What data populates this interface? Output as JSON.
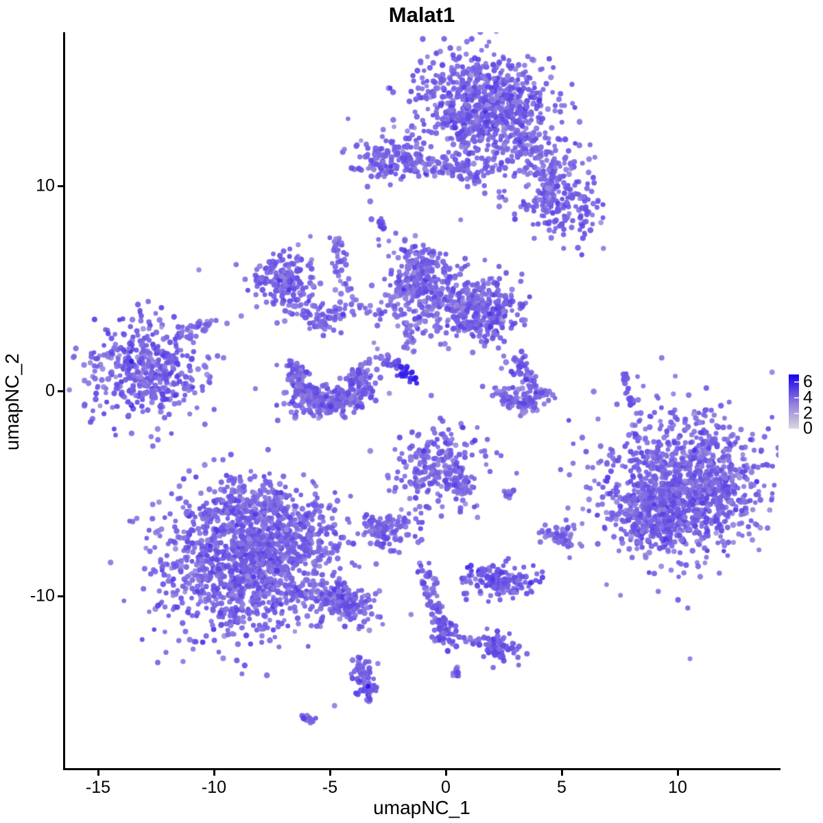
{
  "chart_data": {
    "type": "scatter",
    "title": "Malat1",
    "xlabel": "umapNC_1",
    "ylabel": "umapNC_2",
    "xlim": [
      -16.4,
      14.4
    ],
    "ylim": [
      -17.9,
      17.5
    ],
    "grid": false,
    "background": "#ffffff",
    "axis_color": "#000000",
    "x_ticks": [
      {
        "value": -15,
        "label": "-15"
      },
      {
        "value": -10,
        "label": "-10"
      },
      {
        "value": -5,
        "label": "-5"
      },
      {
        "value": 0,
        "label": "0"
      },
      {
        "value": 5,
        "label": "5"
      },
      {
        "value": 10,
        "label": "10"
      }
    ],
    "y_ticks": [
      {
        "value": 10,
        "label": "10"
      },
      {
        "value": 0,
        "label": "0"
      },
      {
        "value": -10,
        "label": "-10"
      }
    ],
    "colorbar": {
      "position": "right",
      "min": 0,
      "max": 6.8,
      "labels": [
        "6",
        "4",
        "2",
        "0"
      ],
      "label_values": [
        6,
        4,
        2,
        0
      ],
      "low_color": "#D3D3D3",
      "mid_color": "#9680DE",
      "high_color": "#1500EE"
    },
    "point_style": {
      "radius_px": 3.7,
      "alpha": 0.88
    },
    "clusters": [
      {
        "kind": "blob",
        "name": "top-main",
        "cx": 1.6,
        "cy": 14.0,
        "sx": 1.45,
        "sy": 1.25,
        "rot": -20,
        "n": 650,
        "e": 4.1,
        "es": 0.55
      },
      {
        "kind": "blob",
        "name": "top-main-fringe",
        "cx": 1.6,
        "cy": 13.6,
        "sx": 2.0,
        "sy": 1.7,
        "rot": -20,
        "n": 120,
        "e": 4.0,
        "es": 0.6
      },
      {
        "kind": "trail",
        "name": "top-trail",
        "x1": 3.1,
        "y1": 12.9,
        "x2": 4.8,
        "y2": 10.3,
        "w": 0.45,
        "n": 90,
        "e": 4.0,
        "es": 0.5
      },
      {
        "kind": "blob",
        "name": "top-right-lobe",
        "cx": 5.0,
        "cy": 9.1,
        "sx": 0.95,
        "sy": 0.8,
        "rot": -30,
        "n": 170,
        "e": 4.2,
        "es": 0.5
      },
      {
        "kind": "blob",
        "name": "top-right-halo",
        "cx": 4.5,
        "cy": 10.6,
        "sx": 1.1,
        "sy": 1.0,
        "rot": 0,
        "n": 45,
        "e": 3.9,
        "es": 0.5
      },
      {
        "kind": "blob",
        "name": "upper-left-blob",
        "cx": -2.4,
        "cy": 11.3,
        "sx": 0.9,
        "sy": 0.55,
        "rot": -10,
        "n": 150,
        "e": 4.1,
        "es": 0.5
      },
      {
        "kind": "trail",
        "name": "upper-bridge",
        "x1": -1.5,
        "y1": 11.15,
        "x2": 0.5,
        "y2": 10.85,
        "w": 0.22,
        "n": 40,
        "e": 3.9,
        "es": 0.5
      },
      {
        "kind": "blob",
        "name": "upper-bridge-blob",
        "cx": 1.2,
        "cy": 10.9,
        "sx": 0.55,
        "sy": 0.4,
        "rot": 0,
        "n": 55,
        "e": 4.0,
        "es": 0.5
      },
      {
        "kind": "trail",
        "name": "small-dash-mid-top",
        "x1": -2.9,
        "y1": 8.5,
        "x2": -2.75,
        "y2": 8.0,
        "w": 0.12,
        "n": 14,
        "e": 4.2,
        "es": 0.4
      },
      {
        "kind": "blob",
        "name": "left-small-blob",
        "cx": -7.05,
        "cy": 5.4,
        "sx": 0.7,
        "sy": 0.6,
        "rot": 0,
        "n": 130,
        "e": 4.2,
        "es": 0.5
      },
      {
        "kind": "blob",
        "name": "left-small-halo",
        "cx": -7.0,
        "cy": 5.3,
        "sx": 1.2,
        "sy": 1.0,
        "rot": 0,
        "n": 40,
        "e": 3.9,
        "es": 0.5
      },
      {
        "kind": "trail",
        "name": "left-down-trail",
        "x1": -6.5,
        "y1": 4.2,
        "x2": -5.5,
        "y2": 3.4,
        "w": 0.28,
        "n": 25,
        "e": 4.0,
        "es": 0.45
      },
      {
        "kind": "blob",
        "name": "star-blob",
        "cx": -5.1,
        "cy": 3.6,
        "sx": 0.4,
        "sy": 0.35,
        "rot": 0,
        "n": 40,
        "e": 4.1,
        "es": 0.45
      },
      {
        "kind": "trail",
        "name": "vertical-trail",
        "x1": -4.65,
        "y1": 7.5,
        "x2": -4.55,
        "y2": 5.9,
        "w": 0.16,
        "n": 30,
        "e": 4.0,
        "es": 0.45
      },
      {
        "kind": "trail",
        "name": "vertical-trail-2",
        "x1": -4.5,
        "y1": 5.7,
        "x2": -3.9,
        "y2": 4.4,
        "w": 0.2,
        "n": 14,
        "e": 3.9,
        "es": 0.45
      },
      {
        "kind": "trail",
        "name": "bridge-to-fan",
        "x1": -3.8,
        "y1": 4.2,
        "x2": -2.7,
        "y2": 3.2,
        "w": 0.3,
        "n": 12,
        "e": 3.8,
        "es": 0.45
      },
      {
        "kind": "blob",
        "name": "fan-left-lobe",
        "cx": -1.15,
        "cy": 5.7,
        "sx": 0.62,
        "sy": 0.9,
        "rot": 15,
        "n": 210,
        "e": 4.0,
        "es": 0.5
      },
      {
        "kind": "blob",
        "name": "fan-mid",
        "cx": 0.0,
        "cy": 4.3,
        "sx": 1.25,
        "sy": 0.85,
        "rot": 0,
        "n": 190,
        "e": 3.9,
        "es": 0.5
      },
      {
        "kind": "blob",
        "name": "fan-right-lobe",
        "cx": 1.7,
        "cy": 4.0,
        "sx": 0.9,
        "sy": 0.75,
        "rot": -15,
        "n": 250,
        "e": 4.1,
        "es": 0.5
      },
      {
        "kind": "trail",
        "name": "fan-left-arc",
        "x1": -2.25,
        "y1": 4.7,
        "x2": -1.6,
        "y2": 2.7,
        "w": 0.3,
        "n": 30,
        "e": 3.8,
        "es": 0.5
      },
      {
        "kind": "trail",
        "name": "fan-stem",
        "x1": -1.7,
        "y1": 3.0,
        "x2": -1.5,
        "y2": 1.9,
        "w": 0.18,
        "n": 10,
        "e": 3.8,
        "es": 0.4
      },
      {
        "kind": "trail",
        "name": "dark-streak",
        "x1": -2.75,
        "y1": 1.65,
        "x2": -1.25,
        "y2": 0.55,
        "w": 0.16,
        "n": 48,
        "e": 3.6,
        "eg": 6.6,
        "es": 0.3
      },
      {
        "kind": "arc",
        "name": "left-crescent",
        "cx": -5.05,
        "cy": 0.6,
        "r": 1.35,
        "a0": 150,
        "a1": 390,
        "j": 0.32,
        "n": 290,
        "e": 4.0,
        "es": 0.5
      },
      {
        "kind": "blob",
        "name": "left-crescent-fill",
        "cx": -5.0,
        "cy": -0.4,
        "sx": 1.1,
        "sy": 0.45,
        "rot": 0,
        "n": 80,
        "e": 4.0,
        "es": 0.5
      },
      {
        "kind": "trail",
        "name": "right-swoosh-diag",
        "x1": 3.1,
        "y1": 1.45,
        "x2": 3.65,
        "y2": 0.05,
        "w": 0.22,
        "n": 55,
        "e": 4.1,
        "es": 0.5
      },
      {
        "kind": "arc",
        "name": "right-swoosh-arc",
        "cx": 3.3,
        "cy": 0.4,
        "r": 1.05,
        "a0": 185,
        "a1": 340,
        "j": 0.24,
        "n": 105,
        "e": 4.0,
        "es": 0.5
      },
      {
        "kind": "dots",
        "name": "swoosh-strays",
        "pts": [
          [
            2.5,
            1.7
          ],
          [
            2.6,
            1.4
          ],
          [
            2.4,
            1.1
          ]
        ],
        "e": 3.6
      },
      {
        "kind": "trail",
        "name": "thin-dash-a",
        "x1": 7.65,
        "y1": 0.95,
        "x2": 7.75,
        "y2": 0.45,
        "w": 0.08,
        "n": 10,
        "e": 4.3,
        "es": 0.4
      },
      {
        "kind": "trail",
        "name": "thin-dash-b",
        "x1": 7.8,
        "y1": 0.15,
        "x2": 8.0,
        "y2": -0.7,
        "w": 0.08,
        "n": 14,
        "e": 4.3,
        "es": 0.4
      },
      {
        "kind": "blob",
        "name": "right-big",
        "cx": 10.4,
        "cy": -4.7,
        "sx": 1.75,
        "sy": 1.6,
        "rot": 20,
        "n": 1050,
        "e": 4.0,
        "es": 0.55
      },
      {
        "kind": "blob",
        "name": "right-big-lower",
        "cx": 9.2,
        "cy": -6.2,
        "sx": 0.95,
        "sy": 0.8,
        "rot": 0,
        "n": 180,
        "e": 4.2,
        "es": 0.5
      },
      {
        "kind": "blob",
        "name": "right-big-halo",
        "cx": 10.3,
        "cy": -4.4,
        "sx": 2.3,
        "sy": 2.1,
        "rot": 20,
        "n": 130,
        "e": 3.8,
        "es": 0.55
      },
      {
        "kind": "dots",
        "name": "right-big-strays",
        "pts": [
          [
            7.9,
            -2.15
          ],
          [
            8.35,
            -2.3
          ]
        ],
        "e": 3.8
      },
      {
        "kind": "blob",
        "name": "mid-bottom-blob",
        "cx": -0.45,
        "cy": -3.6,
        "sx": 0.95,
        "sy": 0.95,
        "rot": 0,
        "n": 250,
        "e": 4.0,
        "es": 0.5
      },
      {
        "kind": "trail",
        "name": "mid-bottom-tail",
        "x1": 0.4,
        "y1": -4.6,
        "x2": 0.95,
        "y2": -5.1,
        "w": 0.25,
        "n": 28,
        "e": 3.9,
        "es": 0.5
      },
      {
        "kind": "trail",
        "name": "mid-dash",
        "x1": 2.55,
        "y1": -4.95,
        "x2": 2.95,
        "y2": -5.05,
        "w": 0.12,
        "n": 12,
        "e": 4.0,
        "es": 0.4
      },
      {
        "kind": "blob",
        "name": "small-blob-left",
        "cx": -2.6,
        "cy": -6.75,
        "sx": 0.55,
        "sy": 0.42,
        "rot": 20,
        "n": 90,
        "e": 4.1,
        "es": 0.45
      },
      {
        "kind": "trail",
        "name": "small-blob-trail",
        "x1": -1.9,
        "y1": -6.6,
        "x2": -1.2,
        "y2": -7.3,
        "w": 0.2,
        "n": 12,
        "e": 3.9,
        "es": 0.4
      },
      {
        "kind": "blob",
        "name": "small-blob-right",
        "cx": 4.9,
        "cy": -7.15,
        "sx": 0.5,
        "sy": 0.32,
        "rot": 10,
        "n": 45,
        "e": 4.0,
        "es": 0.45
      },
      {
        "kind": "blob",
        "name": "bottomleft-main",
        "cx": -8.6,
        "cy": -8.3,
        "sx": 1.85,
        "sy": 1.75,
        "rot": 10,
        "n": 1250,
        "e": 4.1,
        "es": 0.55
      },
      {
        "kind": "blob",
        "name": "bottomleft-top",
        "cx": -8.2,
        "cy": -5.6,
        "sx": 1.1,
        "sy": 0.9,
        "rot": 0,
        "n": 180,
        "e": 3.9,
        "es": 0.55
      },
      {
        "kind": "blob",
        "name": "bottomleft-right",
        "cx": -6.3,
        "cy": -7.4,
        "sx": 0.9,
        "sy": 0.8,
        "rot": 0,
        "n": 140,
        "e": 4.0,
        "es": 0.5
      },
      {
        "kind": "trail",
        "name": "bottomleft-tail",
        "x1": -5.9,
        "y1": -9.5,
        "x2": -3.3,
        "y2": -10.7,
        "w": 0.42,
        "n": 130,
        "e": 4.0,
        "es": 0.5
      },
      {
        "kind": "blob",
        "name": "bottomleft-tail-knot",
        "cx": -4.45,
        "cy": -10.35,
        "sx": 0.5,
        "sy": 0.35,
        "rot": -20,
        "n": 55,
        "e": 4.1,
        "es": 0.45
      },
      {
        "kind": "blob",
        "name": "bottom-mid-dense",
        "cx": 2.4,
        "cy": -9.25,
        "sx": 0.85,
        "sy": 0.38,
        "rot": -5,
        "n": 140,
        "e": 4.3,
        "es": 0.5
      },
      {
        "kind": "dots",
        "name": "bottom-mid-nub",
        "pts": [
          [
            1.55,
            -8.8
          ],
          [
            1.7,
            -8.7
          ],
          [
            1.45,
            -8.95
          ]
        ],
        "e": 4.2
      },
      {
        "kind": "blob",
        "name": "vtrail-knot-top",
        "cx": -0.85,
        "cy": -9.15,
        "sx": 0.28,
        "sy": 0.28,
        "rot": 0,
        "n": 22,
        "e": 4.2,
        "es": 0.4
      },
      {
        "kind": "trail",
        "name": "vtrail",
        "x1": -0.8,
        "y1": -9.6,
        "x2": -0.1,
        "y2": -11.5,
        "w": 0.16,
        "n": 45,
        "e": 4.1,
        "es": 0.45
      },
      {
        "kind": "blob",
        "name": "vtrail-knot-bottom",
        "cx": -0.1,
        "cy": -11.8,
        "sx": 0.3,
        "sy": 0.33,
        "rot": 0,
        "n": 45,
        "e": 4.3,
        "es": 0.45
      },
      {
        "kind": "trail",
        "name": "vtrail-dashes",
        "x1": 0.3,
        "y1": -11.95,
        "x2": 1.6,
        "y2": -12.25,
        "w": 0.12,
        "n": 16,
        "e": 4.0,
        "es": 0.4
      },
      {
        "kind": "blob",
        "name": "vtrail-end-blob",
        "cx": 2.3,
        "cy": -12.5,
        "sx": 0.42,
        "sy": 0.36,
        "rot": -30,
        "n": 70,
        "e": 4.3,
        "es": 0.45
      },
      {
        "kind": "dots",
        "name": "pair-dots",
        "pts": [
          [
            -3.75,
            -11.6
          ],
          [
            -3.6,
            -11.5
          ]
        ],
        "e": 4.0
      },
      {
        "kind": "blob",
        "name": "comet-head",
        "cx": -3.6,
        "cy": -13.5,
        "sx": 0.26,
        "sy": 0.3,
        "rot": 0,
        "n": 26,
        "e": 4.0,
        "es": 0.5
      },
      {
        "kind": "trail",
        "name": "comet-tail",
        "x1": -3.7,
        "y1": -13.6,
        "x2": -3.3,
        "y2": -14.9,
        "w": 0.2,
        "n": 48,
        "e": 4.2,
        "es": 0.5
      },
      {
        "kind": "dots",
        "name": "comet-dark-point",
        "pts": [
          [
            -3.35,
            -14.4
          ]
        ],
        "e": 6.3
      },
      {
        "kind": "trail",
        "name": "bottom-dash",
        "x1": -6.15,
        "y1": -15.8,
        "x2": -5.8,
        "y2": -16.1,
        "w": 0.1,
        "n": 12,
        "e": 4.2,
        "es": 0.4
      },
      {
        "kind": "trail",
        "name": "small-dash-low",
        "x1": 0.35,
        "y1": -13.6,
        "x2": 0.55,
        "y2": -13.9,
        "w": 0.1,
        "n": 8,
        "e": 4.1,
        "es": 0.4
      },
      {
        "kind": "blob",
        "name": "far-left",
        "cx": -12.9,
        "cy": 1.0,
        "sx": 1.35,
        "sy": 1.15,
        "rot": -10,
        "n": 430,
        "e": 4.1,
        "es": 0.55
      },
      {
        "kind": "trail",
        "name": "far-left-trail",
        "x1": -11.3,
        "y1": 2.6,
        "x2": -10.2,
        "y2": 3.45,
        "w": 0.22,
        "n": 26,
        "e": 3.9,
        "es": 0.5
      },
      {
        "kind": "dots",
        "name": "far-left-dark-point",
        "pts": [
          [
            -13.55,
            1.45
          ]
        ],
        "e": 6.2
      },
      {
        "kind": "dots",
        "name": "stray-singles",
        "pts": [
          [
            6.8,
            6.95
          ],
          [
            -10.65,
            5.9
          ],
          [
            -1.5,
            -10.9
          ],
          [
            0.3,
            -13.9
          ],
          [
            -4.8,
            -15.35
          ],
          [
            -3.1,
            2.35
          ],
          [
            -2.95,
            2.05
          ]
        ],
        "e": 3.3
      }
    ]
  }
}
